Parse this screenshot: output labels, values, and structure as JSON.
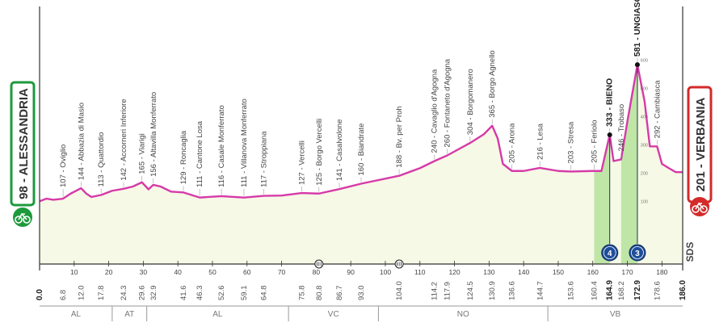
{
  "colors": {
    "profile_line": "#d63aa8",
    "profile_fill": "#f6f9e6",
    "climb_fill": "#bfe6a6",
    "grid": "#c9d4a8",
    "start_accent": "#1d9a3c",
    "finish_accent": "#d42a2a",
    "kom_badge": "#1f4e99",
    "text": "#444444"
  },
  "start": {
    "label": "98 - ALESSANDRIA",
    "icon": "bike-start-icon"
  },
  "finish": {
    "label": "201 - VERBANIA",
    "icon": "bike-finish-icon"
  },
  "sds_label": "SDS",
  "regions": [
    {
      "name": "AL",
      "from": 0.0,
      "to": 21.0
    },
    {
      "name": "AT",
      "from": 21.0,
      "to": 31.0
    },
    {
      "name": "AL",
      "from": 31.0,
      "to": 72.0
    },
    {
      "name": "VC",
      "from": 72.0,
      "to": 98.0
    },
    {
      "name": "NO",
      "from": 98.0,
      "to": 147.0
    },
    {
      "name": "VB",
      "from": 147.0,
      "to": 186.0
    }
  ],
  "chart_data": {
    "type": "area",
    "title": "",
    "xlabel": "",
    "ylabel": "",
    "xlim": [
      0.0,
      186.0
    ],
    "ylim": [
      0,
      1100
    ],
    "x_ticks": [
      10,
      20,
      30,
      40,
      50,
      60,
      70,
      80,
      90,
      100,
      110,
      120,
      130,
      140,
      150,
      160,
      170,
      180
    ],
    "mini_altitude_ticks": [
      "600",
      "500",
      "400",
      "300",
      "200",
      "100"
    ],
    "profile": {
      "x": [
        0,
        2,
        4,
        6.8,
        9,
        12.0,
        13.5,
        15,
        17.8,
        21,
        24.3,
        27,
        29.6,
        31.5,
        32.9,
        35,
        38,
        41.6,
        46.3,
        52.6,
        59.1,
        64.8,
        70,
        75.8,
        80.8,
        86.7,
        93.0,
        104.0,
        110,
        114.2,
        117.9,
        124.5,
        128.5,
        130.9,
        132.5,
        134,
        136.6,
        140,
        144.7,
        150,
        153.6,
        160,
        162.5,
        164.9,
        166,
        168.2,
        170,
        172.9,
        175,
        176.5,
        178.6,
        180,
        182,
        184,
        186.0
      ],
      "y": [
        98,
        107,
        103,
        107,
        125,
        144,
        125,
        113,
        120,
        135,
        142,
        150,
        165,
        140,
        156,
        150,
        132,
        129,
        111,
        116,
        111,
        117,
        118,
        127,
        125,
        141,
        160,
        188,
        215,
        240,
        260,
        304,
        335,
        365,
        320,
        230,
        205,
        205,
        216,
        205,
        203,
        205,
        205,
        333,
        240,
        246,
        380,
        581,
        450,
        292,
        292,
        230,
        215,
        201,
        201
      ]
    },
    "km_labels": [
      "0.0",
      "6.8",
      "12.0",
      "17.8",
      "24.3",
      "29.6",
      "32.9",
      "41.6",
      "46.3",
      "52.6",
      "59.1",
      "64.8",
      "75.8",
      "80.8",
      "86.7",
      "93.0",
      "104.0",
      "114.2",
      "117.9",
      "124.5",
      "130.9",
      "136.6",
      "144.7",
      "153.6",
      "160.4",
      "164.9",
      "168.2",
      "172.9",
      "178.6",
      "186.0"
    ],
    "bold_km_labels": [
      "0.0",
      "164.9",
      "172.9",
      "186.0"
    ],
    "waypoints": [
      {
        "km": 6.8,
        "text": "107 - Oviglio"
      },
      {
        "km": 12.0,
        "text": "144 - Abbazia di Masio"
      },
      {
        "km": 17.8,
        "text": "113 - Quattordio"
      },
      {
        "km": 24.3,
        "text": "142 - Accorneri Inferiore"
      },
      {
        "km": 29.6,
        "text": "165 - Viarigi"
      },
      {
        "km": 32.9,
        "text": "156 - Altavilla Monferrato"
      },
      {
        "km": 41.6,
        "text": "129 - Roncaglia"
      },
      {
        "km": 46.3,
        "text": "111 - Cantone Losa"
      },
      {
        "km": 52.6,
        "text": "116 - Casale Monferrato"
      },
      {
        "km": 59.1,
        "text": "111 - Villanova Monferrato"
      },
      {
        "km": 64.8,
        "text": "117 - Stroppiana"
      },
      {
        "km": 75.8,
        "text": "127 - Vercelli"
      },
      {
        "km": 80.8,
        "text": "125 - Borgo Vercelli"
      },
      {
        "km": 86.7,
        "text": "141 - Casalvolone"
      },
      {
        "km": 93.0,
        "text": "160 - Biandrate"
      },
      {
        "km": 104.0,
        "text": "188 - Bv. per Proh"
      },
      {
        "km": 114.2,
        "text": "240 - Cavaglio d'Agogna"
      },
      {
        "km": 117.9,
        "text": "260 - Fontaneto d'Agogna"
      },
      {
        "km": 124.5,
        "text": "304 - Borgomanero"
      },
      {
        "km": 130.9,
        "text": "365 - Borgo Agnello"
      },
      {
        "km": 136.6,
        "text": "205 - Arona"
      },
      {
        "km": 144.7,
        "text": "216 - Lesa"
      },
      {
        "km": 153.6,
        "text": "203 - Stresa"
      },
      {
        "km": 160.4,
        "text": "205 - Feriolo"
      },
      {
        "km": 164.9,
        "text": "333 - BIENO",
        "bold": true
      },
      {
        "km": 168.2,
        "text": "246 - Trobaso"
      },
      {
        "km": 172.9,
        "text": "581 - UNGIASCA",
        "bold": true
      },
      {
        "km": 178.6,
        "text": "292 - Cambiasca"
      }
    ],
    "kom_climbs": [
      {
        "km": 164.9,
        "category": "4",
        "from_km": 160.4
      },
      {
        "km": 172.9,
        "category": "3",
        "from_km": 168.2
      }
    ],
    "feed_zones": [
      {
        "km": 80.8,
        "icon": "feed-zone-icon"
      },
      {
        "km": 104.0,
        "icon": "feed-zone-icon"
      }
    ]
  }
}
